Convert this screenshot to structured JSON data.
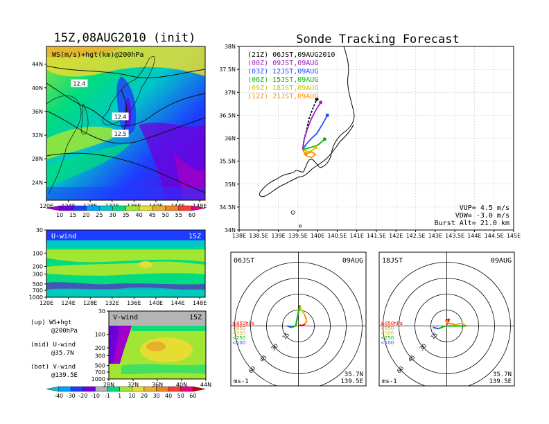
{
  "chart_data": [
    {
      "type": "heatmap",
      "panel": "map",
      "title": "15Z,08AUG2010 (init)",
      "inset_label": "WS(m/s)+hgt(km)@200hPa",
      "xticks": [
        "120E",
        "124E",
        "128E",
        "132E",
        "136E",
        "140E",
        "144E",
        "148E"
      ],
      "yticks": [
        "24N",
        "28N",
        "32N",
        "36N",
        "40N",
        "44N"
      ],
      "xlim": [
        120,
        149
      ],
      "ylim": [
        21,
        47
      ],
      "colorbar": [
        "10",
        "15",
        "20",
        "25",
        "30",
        "35",
        "40",
        "45",
        "50",
        "55",
        "60"
      ],
      "colors": [
        "#a000c8",
        "#6e00dc",
        "#1e3cff",
        "#00a0ff",
        "#00c8c8",
        "#00dc7e",
        "#a0e632",
        "#e6dc32",
        "#e6af2d",
        "#f08228",
        "#fa3c3c",
        "#f00082"
      ],
      "contour_labels": [
        {
          "text": "12.4",
          "lon": 126,
          "lat": 40.6
        },
        {
          "text": "12.4",
          "lon": 133.5,
          "lat": 35.0
        },
        {
          "text": "12.5",
          "lon": 133.5,
          "lat": 32.1
        }
      ]
    },
    {
      "type": "heatmap",
      "panel": "u-wind",
      "inset_label": "U-wind",
      "time_label": "15Z",
      "xticks": [
        "120E",
        "124E",
        "128E",
        "132E",
        "136E",
        "140E",
        "144E",
        "148E"
      ],
      "yticks": [
        "30",
        "100",
        "200",
        "300",
        "500",
        "700",
        "1000"
      ]
    },
    {
      "type": "heatmap",
      "panel": "v-wind",
      "inset_label": "V-wind",
      "time_label": "15Z",
      "xticks": [
        "28N",
        "32N",
        "36N",
        "40N",
        "44N"
      ],
      "yticks": [
        "30",
        "100",
        "200",
        "300",
        "500",
        "700",
        "1000"
      ],
      "colorbar": [
        "-40",
        "-30",
        "-20",
        "-10",
        "-1",
        "1",
        "10",
        "20",
        "30",
        "40",
        "50",
        "60"
      ]
    },
    {
      "type": "line",
      "panel": "sonde-track",
      "title": "Sonde Tracking Forecast",
      "xlim": [
        138,
        145
      ],
      "ylim": [
        34,
        38
      ],
      "xticks": [
        "138E",
        "138.5E",
        "139E",
        "139.5E",
        "140E",
        "140.5E",
        "141E",
        "141.5E",
        "142E",
        "142.5E",
        "143E",
        "143.5E",
        "144E",
        "144.5E",
        "145E"
      ],
      "yticks": [
        "34N",
        "34.5N",
        "35N",
        "35.5N",
        "36N",
        "36.5N",
        "37N",
        "37.5N",
        "38N"
      ],
      "series": [
        {
          "name": "(21Z) 06JST,09AUG2010",
          "color": "#000000",
          "x": [
            139.62,
            139.65,
            139.72,
            139.78,
            139.88,
            139.98
          ],
          "y": [
            35.75,
            35.95,
            36.18,
            36.42,
            36.65,
            36.85
          ]
        },
        {
          "name": "(00Z) 09JST,09AUG",
          "color": "#a020c0",
          "x": [
            139.62,
            139.66,
            139.74,
            139.84,
            139.96,
            140.08
          ],
          "y": [
            35.75,
            35.98,
            36.2,
            36.42,
            36.62,
            36.78
          ]
        },
        {
          "name": "(03Z) 12JST,09AUG",
          "color": "#1e50ff",
          "x": [
            139.62,
            139.72,
            139.85,
            139.98,
            140.12,
            140.25
          ],
          "y": [
            35.75,
            35.88,
            36.0,
            36.1,
            36.3,
            36.5
          ]
        },
        {
          "name": "(06Z) 15JST,09AUG",
          "color": "#00b400",
          "x": [
            139.62,
            139.75,
            139.9,
            140.0,
            140.05,
            140.18
          ],
          "y": [
            35.75,
            35.78,
            35.82,
            35.85,
            35.88,
            35.98
          ]
        },
        {
          "name": "(09Z) 18JST,09AUG",
          "color": "#c8c800",
          "x": [
            139.62,
            139.7,
            139.78,
            139.85,
            139.9,
            139.95
          ],
          "y": [
            35.75,
            35.72,
            35.7,
            35.73,
            35.76,
            35.8
          ]
        },
        {
          "name": "(12Z) 21JST,09AUG",
          "color": "#ff8c00",
          "x": [
            139.62,
            139.7,
            139.85,
            139.95,
            139.85,
            139.7
          ],
          "y": [
            35.75,
            35.62,
            35.58,
            35.65,
            35.7,
            35.66
          ]
        }
      ],
      "info": [
        "VUP= 4.5 m/s",
        "VDW= -3.0 m/s",
        "Burst Alt= 21.0 km"
      ]
    },
    {
      "type": "line",
      "panel": "hodograph",
      "time_left": "06JST",
      "date_right": "09AUG",
      "rings": [
        "15",
        "30",
        "45",
        "60"
      ],
      "unit": "ms-1",
      "loc": [
        "35.7N",
        "139.5E"
      ]
    },
    {
      "type": "line",
      "panel": "hodograph",
      "time_left": "18JST",
      "date_right": "09AUG",
      "rings": [
        "15",
        "30",
        "45",
        "60"
      ],
      "unit": "ms-1",
      "loc": [
        "35.7N",
        "139.5E"
      ]
    }
  ],
  "hodo_legend": [
    {
      "text": "≥850hPa",
      "color": "#ff0000"
    },
    {
      "text": "<850",
      "color": "#ff8c00"
    },
    {
      "text": "<500",
      "color": "#c8c800"
    },
    {
      "text": "<250",
      "color": "#00b400"
    },
    {
      "text": "<100",
      "color": "#1e50ff"
    }
  ],
  "notes": {
    "up": [
      "(up) WS+hgt",
      "@200hPa"
    ],
    "mid": [
      "(mid) U-wind",
      "@35.7N"
    ],
    "bot": [
      "(bot) V-wind",
      "@139.5E"
    ]
  }
}
